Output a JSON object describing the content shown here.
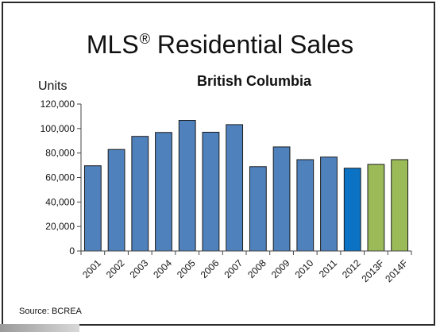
{
  "slide": {
    "title": "MLS",
    "title_mark": "®",
    "title_rest": " Residential Sales",
    "source": "Source: BCREA"
  },
  "chart_data": {
    "type": "bar",
    "title": "British Columbia",
    "ylabel": "Units",
    "xlabel": "",
    "ylim": [
      0,
      120000
    ],
    "yticks": [
      0,
      20000,
      40000,
      60000,
      80000,
      100000,
      120000
    ],
    "ytick_labels": [
      "0",
      "20,000",
      "40,000",
      "60,000",
      "80,000",
      "100,000",
      "120,000"
    ],
    "grid": false,
    "categories": [
      "2001",
      "2002",
      "2003",
      "2004",
      "2005",
      "2006",
      "2007",
      "2008",
      "2009",
      "2010",
      "2011",
      "2012",
      "2013F",
      "2014F"
    ],
    "values": [
      69600,
      82900,
      93600,
      96800,
      106700,
      97000,
      103200,
      68900,
      85000,
      74600,
      76700,
      67600,
      70700,
      74600
    ],
    "colors": [
      "#4f81bd",
      "#4f81bd",
      "#4f81bd",
      "#4f81bd",
      "#4f81bd",
      "#4f81bd",
      "#4f81bd",
      "#4f81bd",
      "#4f81bd",
      "#4f81bd",
      "#4f81bd",
      "#0b72c4",
      "#9bbb59",
      "#9bbb59"
    ],
    "edge_color": "#1a1a1a"
  }
}
